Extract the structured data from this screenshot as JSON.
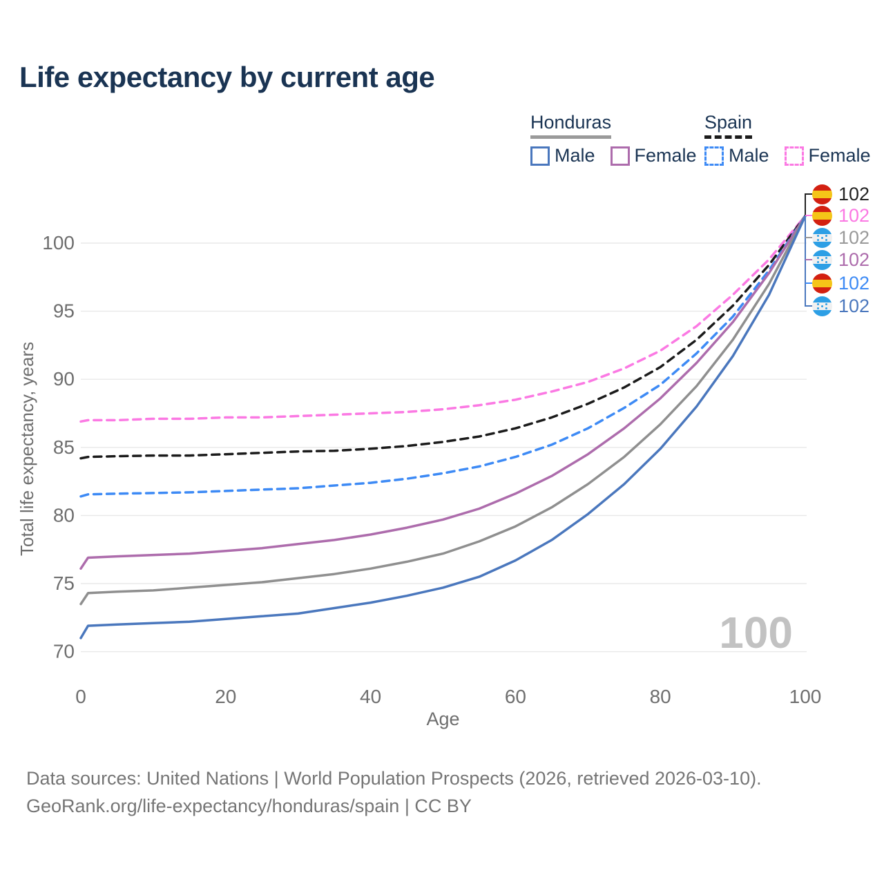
{
  "title": "Life expectancy by current age",
  "watermark": "100",
  "legend": {
    "groups": [
      {
        "label": "Honduras",
        "line_style": "solid",
        "underline_color": "#9a9a9a",
        "items": [
          {
            "label": "Male",
            "color": "#4a77bd",
            "style": "solid"
          },
          {
            "label": "Female",
            "color": "#ad6cac",
            "style": "solid"
          }
        ]
      },
      {
        "label": "Spain",
        "line_style": "dashed",
        "underline_color": "#1b1b1b",
        "items": [
          {
            "label": "Male",
            "color": "#3d8af5",
            "style": "dashed"
          },
          {
            "label": "Female",
            "color": "#fb79e3",
            "style": "dashed"
          }
        ]
      }
    ]
  },
  "chart_data": {
    "type": "line",
    "xlabel": "Age",
    "ylabel": "Total life expectancy, years",
    "xticks": [
      0,
      20,
      40,
      60,
      80,
      100
    ],
    "yticks": [
      70,
      75,
      80,
      85,
      90,
      95,
      100
    ],
    "xlim": [
      0,
      100
    ],
    "ylim": [
      69.5,
      103.5
    ],
    "grid": true,
    "legend_position": "top-right",
    "x": [
      0,
      1,
      5,
      10,
      15,
      20,
      25,
      30,
      35,
      40,
      45,
      50,
      55,
      60,
      65,
      70,
      75,
      80,
      85,
      90,
      95,
      100
    ],
    "series": [
      {
        "id": "spain-female",
        "name": "Spain Female",
        "country": "Spain",
        "sex": "Female",
        "color": "#fb79e3",
        "dashed": true,
        "values": [
          86.9,
          87.0,
          87.0,
          87.1,
          87.1,
          87.2,
          87.2,
          87.3,
          87.4,
          87.5,
          87.6,
          87.8,
          88.1,
          88.5,
          89.1,
          89.8,
          90.8,
          92.1,
          93.9,
          96.2,
          98.8,
          102
        ]
      },
      {
        "id": "spain-total",
        "name": "Spain (both sexes)",
        "country": "Spain",
        "sex": "Both",
        "color": "#1b1b1b",
        "dashed": true,
        "values": [
          84.2,
          84.3,
          84.35,
          84.4,
          84.4,
          84.5,
          84.6,
          84.7,
          84.75,
          84.9,
          85.1,
          85.4,
          85.8,
          86.4,
          87.2,
          88.2,
          89.4,
          90.9,
          92.9,
          95.4,
          98.4,
          102
        ]
      },
      {
        "id": "spain-male",
        "name": "Spain Male",
        "country": "Spain",
        "sex": "Male",
        "color": "#3d8af5",
        "dashed": true,
        "values": [
          81.4,
          81.55,
          81.6,
          81.65,
          81.7,
          81.8,
          81.9,
          82.0,
          82.2,
          82.4,
          82.7,
          83.1,
          83.6,
          84.3,
          85.2,
          86.4,
          87.9,
          89.6,
          91.9,
          94.6,
          98.0,
          102
        ]
      },
      {
        "id": "honduras-female",
        "name": "Honduras Female",
        "country": "Honduras",
        "sex": "Female",
        "color": "#ad6cac",
        "dashed": false,
        "values": [
          76.1,
          76.9,
          77.0,
          77.1,
          77.2,
          77.4,
          77.6,
          77.9,
          78.2,
          78.6,
          79.1,
          79.7,
          80.5,
          81.6,
          82.9,
          84.5,
          86.4,
          88.6,
          91.2,
          94.2,
          97.8,
          102
        ]
      },
      {
        "id": "honduras-total",
        "name": "Honduras (both sexes)",
        "country": "Honduras",
        "sex": "Both",
        "color": "#8f8f8f",
        "dashed": false,
        "values": [
          73.5,
          74.3,
          74.4,
          74.5,
          74.7,
          74.9,
          75.1,
          75.4,
          75.7,
          76.1,
          76.6,
          77.2,
          78.1,
          79.2,
          80.6,
          82.3,
          84.3,
          86.7,
          89.5,
          92.9,
          97.0,
          102
        ]
      },
      {
        "id": "honduras-male",
        "name": "Honduras Male",
        "country": "Honduras",
        "sex": "Male",
        "color": "#4a77bd",
        "dashed": false,
        "values": [
          71.0,
          71.9,
          72.0,
          72.1,
          72.2,
          72.4,
          72.6,
          72.8,
          73.2,
          73.6,
          74.1,
          74.7,
          75.5,
          76.7,
          78.2,
          80.1,
          82.3,
          84.9,
          88.0,
          91.7,
          96.2,
          102
        ]
      }
    ]
  },
  "endpoint_labels": [
    {
      "flag": "spain",
      "series": "spain-total",
      "value": "102",
      "color": "#222222"
    },
    {
      "flag": "spain",
      "series": "spain-female",
      "value": "102",
      "color": "#fb79e3"
    },
    {
      "flag": "honduras",
      "series": "honduras-total",
      "value": "102",
      "color": "#999999"
    },
    {
      "flag": "honduras",
      "series": "honduras-female",
      "value": "102",
      "color": "#ad6cac"
    },
    {
      "flag": "spain",
      "series": "spain-male",
      "value": "102",
      "color": "#3d8af5"
    },
    {
      "flag": "honduras",
      "series": "honduras-male",
      "value": "102",
      "color": "#4a77bd"
    }
  ],
  "footer": {
    "line1": "Data sources: United Nations | World Population Prospects (2026, retrieved 2026-03-10).",
    "line2": "GeoRank.org/life-expectancy/honduras/spain | CC BY"
  }
}
